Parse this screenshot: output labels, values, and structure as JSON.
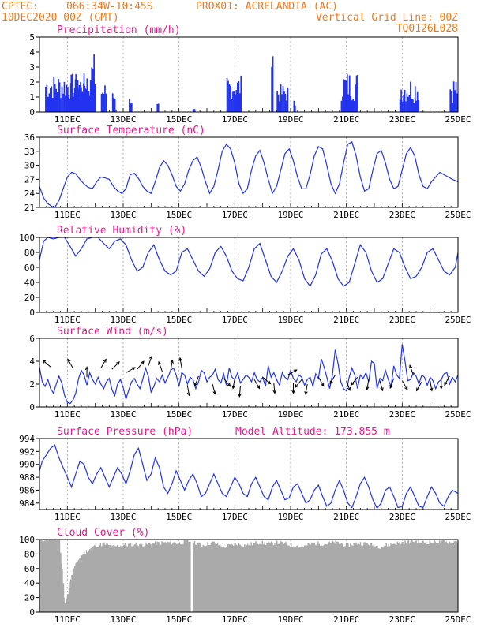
{
  "header": {
    "line1_left": "CPTEC:",
    "line1_coords": "066:34W-10:45S",
    "line1_station": "PROX01: ACRELANDIA (AC)",
    "line2_date": "10DEC2020 00Z (GMT)",
    "line2_grid": "Vertical Grid Line: 00Z",
    "line3_code": "TQ0126L028"
  },
  "colors": {
    "header": "#f07a1a",
    "title": "#e8198c",
    "series": "#2233ee",
    "cloud": "#aaaaaa",
    "grid": "#999999"
  },
  "x_tick_labels": [
    "11DEC",
    "13DEC",
    "15DEC",
    "17DEC",
    "19DEC",
    "21DEC",
    "23DEC",
    "25DEC"
  ],
  "chart_data": [
    {
      "type": "bar",
      "title": "Precipitation (mm/h)",
      "ylim": [
        0,
        5
      ],
      "yticks": [
        0,
        1,
        2,
        3,
        4,
        5
      ],
      "x_unit": "days since 10DEC2020 00Z",
      "xlim": [
        0,
        15
      ],
      "events": [
        [
          0.2,
          1.8,
          0.8,
          2.6
        ],
        [
          1.1,
          1.6,
          0.7,
          2.3
        ],
        [
          1.6,
          2.0,
          0.8,
          4.0
        ],
        [
          2.2,
          2.4,
          0.6,
          2.0
        ],
        [
          2.6,
          2.7,
          0.5,
          2.2
        ],
        [
          3.2,
          3.3,
          0.5,
          1.0
        ],
        [
          4.2,
          4.25,
          0.3,
          0.6
        ],
        [
          5.5,
          5.55,
          0.2,
          0.2
        ],
        [
          6.7,
          7.2,
          0.8,
          2.5
        ],
        [
          8.3,
          8.35,
          3.0,
          5.0
        ],
        [
          8.5,
          8.9,
          0.6,
          1.9
        ],
        [
          9.1,
          9.15,
          0.3,
          0.8
        ],
        [
          10.8,
          11.4,
          0.7,
          2.8
        ],
        [
          12.9,
          13.6,
          0.6,
          2.4
        ],
        [
          14.7,
          15,
          0.6,
          2.5
        ]
      ]
    },
    {
      "type": "line",
      "title": "Surface Temperature (nC)",
      "ylim": [
        21,
        36
      ],
      "yticks": [
        21,
        24,
        27,
        30,
        33,
        36
      ],
      "xlim": [
        0,
        15
      ],
      "x": [
        0,
        0.15,
        0.3,
        0.45,
        0.55,
        0.7,
        0.85,
        1.0,
        1.15,
        1.3,
        1.45,
        1.6,
        1.75,
        1.9,
        2.05,
        2.2,
        2.35,
        2.5,
        2.65,
        2.8,
        2.95,
        3.1,
        3.25,
        3.4,
        3.55,
        3.7,
        3.85,
        4.0,
        4.15,
        4.3,
        4.45,
        4.6,
        4.75,
        4.9,
        5.05,
        5.2,
        5.35,
        5.5,
        5.65,
        5.8,
        5.95,
        6.1,
        6.25,
        6.4,
        6.55,
        6.7,
        6.85,
        7.0,
        7.15,
        7.3,
        7.45,
        7.6,
        7.75,
        7.9,
        8.05,
        8.2,
        8.35,
        8.5,
        8.65,
        8.8,
        8.95,
        9.1,
        9.25,
        9.4,
        9.55,
        9.7,
        9.85,
        10.0,
        10.15,
        10.3,
        10.45,
        10.6,
        10.75,
        10.9,
        11.05,
        11.2,
        11.35,
        11.5,
        11.65,
        11.8,
        11.95,
        12.1,
        12.25,
        12.4,
        12.55,
        12.7,
        12.85,
        13.0,
        13.15,
        13.3,
        13.45,
        13.6,
        13.75,
        13.9,
        14.05,
        14.2,
        14.35,
        14.5,
        14.65,
        14.8,
        15.0
      ],
      "y": [
        25.5,
        23,
        21.8,
        21.2,
        21,
        22.5,
        25,
        27.5,
        28.5,
        28.2,
        27,
        26,
        25.3,
        25,
        26.5,
        27.5,
        27.3,
        27,
        25.5,
        24.5,
        24,
        25,
        28,
        28.3,
        27.2,
        25.5,
        24.5,
        24,
        26.5,
        29.5,
        31,
        30,
        28,
        25.5,
        24.5,
        26,
        29,
        31,
        31.8,
        29.5,
        26.5,
        24,
        25.5,
        29,
        33,
        34.5,
        33.5,
        30.5,
        26,
        24,
        25,
        29,
        32,
        33.2,
        30.5,
        27,
        24,
        25.5,
        29,
        32.5,
        33.5,
        31,
        27.5,
        25,
        25,
        28,
        32,
        34,
        33.5,
        30,
        26,
        24,
        26,
        30.5,
        34.5,
        35,
        32,
        27.5,
        24.5,
        25,
        29,
        32.5,
        33.2,
        30.5,
        27,
        25,
        25.5,
        29,
        32.5,
        33.8,
        32,
        28,
        25.5,
        25,
        26.5,
        27.5,
        28.5,
        28,
        27.5,
        27,
        26.5
      ]
    },
    {
      "type": "line",
      "title": "Relative Humidity (%)",
      "ylim": [
        0,
        100
      ],
      "yticks": [
        0,
        20,
        40,
        60,
        80,
        100
      ],
      "xlim": [
        0,
        15
      ],
      "x": [
        0,
        0.15,
        0.3,
        0.5,
        0.7,
        0.9,
        1.1,
        1.3,
        1.5,
        1.7,
        1.9,
        2.1,
        2.3,
        2.5,
        2.7,
        2.9,
        3.1,
        3.3,
        3.5,
        3.7,
        3.9,
        4.1,
        4.3,
        4.5,
        4.7,
        4.9,
        5.1,
        5.3,
        5.5,
        5.7,
        5.9,
        6.1,
        6.3,
        6.5,
        6.7,
        6.9,
        7.1,
        7.3,
        7.5,
        7.7,
        7.9,
        8.1,
        8.3,
        8.5,
        8.7,
        8.9,
        9.1,
        9.3,
        9.5,
        9.7,
        9.9,
        10.1,
        10.3,
        10.5,
        10.7,
        10.9,
        11.1,
        11.3,
        11.5,
        11.7,
        11.9,
        12.1,
        12.3,
        12.5,
        12.7,
        12.9,
        13.1,
        13.3,
        13.5,
        13.7,
        13.9,
        14.1,
        14.3,
        14.5,
        14.7,
        14.9,
        15.0
      ],
      "y": [
        70,
        95,
        100,
        98,
        100,
        100,
        88,
        75,
        85,
        98,
        100,
        100,
        92,
        85,
        95,
        98,
        90,
        70,
        55,
        60,
        80,
        90,
        70,
        55,
        50,
        55,
        80,
        85,
        70,
        55,
        48,
        58,
        80,
        88,
        75,
        55,
        45,
        42,
        60,
        85,
        92,
        70,
        48,
        40,
        55,
        75,
        85,
        70,
        45,
        35,
        50,
        78,
        85,
        68,
        45,
        35,
        40,
        65,
        90,
        80,
        55,
        40,
        45,
        65,
        85,
        80,
        60,
        45,
        48,
        60,
        80,
        85,
        70,
        55,
        50,
        60,
        80
      ]
    },
    {
      "type": "line",
      "title": "Surface Wind (m/s)",
      "ylim": [
        0,
        6
      ],
      "yticks": [
        0,
        2,
        4,
        6
      ],
      "xlim": [
        0,
        15
      ],
      "x": [
        0,
        0.1,
        0.2,
        0.3,
        0.4,
        0.5,
        0.6,
        0.7,
        0.8,
        0.9,
        1.0,
        1.1,
        1.2,
        1.3,
        1.4,
        1.5,
        1.6,
        1.7,
        1.8,
        1.9,
        2.0,
        2.1,
        2.2,
        2.3,
        2.4,
        2.5,
        2.6,
        2.7,
        2.8,
        2.9,
        3.0,
        3.1,
        3.2,
        3.3,
        3.4,
        3.5,
        3.6,
        3.7,
        3.8,
        3.9,
        4.0,
        4.1,
        4.2,
        4.3,
        4.4,
        4.5,
        4.6,
        4.7,
        4.8,
        4.9,
        5.0,
        5.1,
        5.2,
        5.3,
        5.4,
        5.5,
        5.6,
        5.7,
        5.8,
        5.9,
        6.0,
        6.1,
        6.2,
        6.3,
        6.4,
        6.5,
        6.6,
        6.7,
        6.8,
        6.9,
        7.0,
        7.1,
        7.2,
        7.3,
        7.4,
        7.5,
        7.6,
        7.7,
        7.8,
        7.9,
        8.0,
        8.1,
        8.2,
        8.3,
        8.4,
        8.5,
        8.6,
        8.7,
        8.8,
        8.9,
        9.0,
        9.1,
        9.2,
        9.3,
        9.4,
        9.5,
        9.6,
        9.7,
        9.8,
        9.9,
        10.0,
        10.1,
        10.2,
        10.3,
        10.4,
        10.5,
        10.6,
        10.7,
        10.8,
        10.9,
        11.0,
        11.1,
        11.2,
        11.3,
        11.4,
        11.5,
        11.6,
        11.7,
        11.8,
        11.9,
        12.0,
        12.1,
        12.2,
        12.3,
        12.4,
        12.5,
        12.6,
        12.7,
        12.8,
        12.9,
        13.0,
        13.1,
        13.2,
        13.3,
        13.4,
        13.5,
        13.6,
        13.7,
        13.8,
        13.9,
        14.0,
        14.1,
        14.2,
        14.3,
        14.4,
        14.5,
        14.6,
        14.7,
        14.8,
        14.9,
        15.0
      ],
      "y": [
        3.5,
        2.2,
        1.8,
        2.4,
        1.6,
        1.2,
        2.0,
        2.7,
        2.1,
        1.0,
        0.4,
        0.3,
        0.6,
        1.2,
        2.5,
        3.2,
        2.8,
        1.9,
        3.0,
        2.4,
        2.0,
        2.6,
        2.0,
        1.6,
        2.2,
        2.5,
        1.5,
        1.0,
        2.0,
        2.4,
        1.7,
        0.7,
        1.5,
        2.2,
        2.5,
        2.0,
        1.6,
        2.4,
        3.4,
        2.7,
        1.3,
        1.8,
        2.5,
        2.2,
        2.8,
        2.1,
        2.6,
        3.2,
        3.4,
        2.8,
        1.8,
        3.0,
        2.8,
        2.0,
        2.6,
        2.4,
        1.6,
        2.2,
        3.2,
        3.0,
        2.2,
        2.6,
        2.8,
        3.3,
        2.4,
        2.1,
        2.9,
        1.9,
        3.4,
        2.6,
        2.4,
        3.0,
        2.1,
        2.4,
        2.8,
        2.6,
        2.2,
        3.0,
        2.4,
        2.2,
        2.6,
        1.8,
        3.6,
        2.6,
        3.0,
        2.4,
        1.9,
        3.0,
        2.6,
        2.4,
        3.2,
        2.5,
        2.2,
        2.8,
        2.6,
        1.9,
        2.4,
        2.6,
        1.8,
        2.9,
        2.5,
        4.2,
        3.5,
        2.6,
        1.6,
        2.8,
        5.0,
        3.8,
        2.2,
        1.6,
        1.4,
        2.6,
        3.4,
        2.8,
        1.6,
        2.8,
        2.5,
        3.0,
        2.2,
        4.0,
        3.8,
        1.6,
        2.5,
        2.3,
        3.2,
        2.4,
        1.8,
        3.6,
        2.8,
        2.5,
        5.5,
        4.0,
        2.3,
        2.4,
        3.0,
        2.7,
        2.0,
        2.8,
        2.6,
        1.9,
        2.6,
        2.3,
        1.6,
        2.2,
        2.4,
        2.9,
        3.0,
        2.0,
        2.6,
        2.2,
        2.8
      ]
    },
    {
      "type": "line",
      "title": "Surface Pressure (hPa)",
      "annotation": "Model Altitude: 173.855 m",
      "ylim": [
        983,
        994
      ],
      "yticks": [
        984,
        986,
        988,
        990,
        992,
        994
      ],
      "xlim": [
        0,
        15
      ],
      "x": [
        0,
        0.1,
        0.25,
        0.4,
        0.55,
        0.7,
        0.85,
        1.0,
        1.15,
        1.3,
        1.45,
        1.6,
        1.75,
        1.9,
        2.05,
        2.2,
        2.35,
        2.5,
        2.65,
        2.8,
        2.95,
        3.1,
        3.25,
        3.4,
        3.55,
        3.7,
        3.85,
        4.0,
        4.15,
        4.3,
        4.45,
        4.6,
        4.75,
        4.9,
        5.05,
        5.2,
        5.35,
        5.5,
        5.65,
        5.8,
        5.95,
        6.1,
        6.25,
        6.4,
        6.55,
        6.7,
        6.85,
        7.0,
        7.15,
        7.3,
        7.45,
        7.6,
        7.75,
        7.9,
        8.05,
        8.2,
        8.35,
        8.5,
        8.65,
        8.8,
        8.95,
        9.1,
        9.25,
        9.4,
        9.55,
        9.7,
        9.85,
        10.0,
        10.15,
        10.3,
        10.45,
        10.6,
        10.75,
        10.9,
        11.05,
        11.2,
        11.35,
        11.5,
        11.65,
        11.8,
        11.95,
        12.1,
        12.25,
        12.4,
        12.55,
        12.7,
        12.85,
        13.0,
        13.15,
        13.3,
        13.45,
        13.6,
        13.75,
        13.9,
        14.05,
        14.2,
        14.35,
        14.5,
        14.65,
        14.8,
        15.0
      ],
      "y": [
        989,
        990.5,
        991.5,
        992.5,
        993,
        991,
        989.5,
        988,
        986.5,
        988.5,
        990.5,
        990,
        988,
        987,
        988.5,
        989.5,
        988,
        986.5,
        988,
        989.5,
        988.5,
        987,
        989,
        991.5,
        992.5,
        990,
        987.5,
        988.5,
        991,
        989.5,
        986.5,
        985.5,
        987,
        989,
        987.5,
        986,
        987.5,
        988.5,
        987,
        985,
        985.5,
        987,
        988.5,
        987,
        985.5,
        985,
        986.5,
        988,
        987,
        985.5,
        985,
        987,
        988,
        986.5,
        985,
        984.5,
        986.5,
        987.5,
        986,
        984.5,
        984.8,
        986.5,
        987,
        985.5,
        984,
        984.5,
        986,
        986.8,
        985,
        983.5,
        984,
        986,
        987.5,
        986,
        984,
        983.3,
        985,
        987,
        988,
        986.5,
        984.5,
        983.2,
        984,
        986,
        986.5,
        985,
        983.3,
        983.5,
        985.5,
        986.5,
        985,
        983.5,
        983.3,
        985,
        986.5,
        985.5,
        984,
        983.5,
        985,
        986,
        985.5
      ]
    },
    {
      "type": "area",
      "title": "Cloud Cover (%)",
      "ylim": [
        0,
        100
      ],
      "yticks": [
        0,
        20,
        40,
        60,
        80,
        100
      ],
      "xlim": [
        0,
        15
      ],
      "x": [
        0,
        0.7,
        0.8,
        0.9,
        1.0,
        1.1,
        1.2,
        1.3,
        1.5,
        1.7,
        2.0,
        2.3,
        2.6,
        3.0,
        3.4,
        3.8,
        4.2,
        4.6,
        5.0,
        5.4,
        5.45,
        5.5,
        5.8,
        6.2,
        6.6,
        7.0,
        7.4,
        7.8,
        8.2,
        8.6,
        9.0,
        9.4,
        9.8,
        10.2,
        10.6,
        11.0,
        11.4,
        11.8,
        12.2,
        12.6,
        13.0,
        13.4,
        13.8,
        14.2,
        14.6,
        15.0
      ],
      "y": [
        100,
        100,
        60,
        12,
        25,
        45,
        60,
        68,
        78,
        85,
        92,
        94,
        90,
        92,
        94,
        93,
        95,
        96,
        95,
        98,
        0,
        97,
        92,
        96,
        90,
        94,
        92,
        96,
        94,
        96,
        92,
        90,
        95,
        94,
        96,
        92,
        95,
        94,
        90,
        94,
        96,
        98,
        96,
        97,
        96,
        98
      ]
    }
  ]
}
